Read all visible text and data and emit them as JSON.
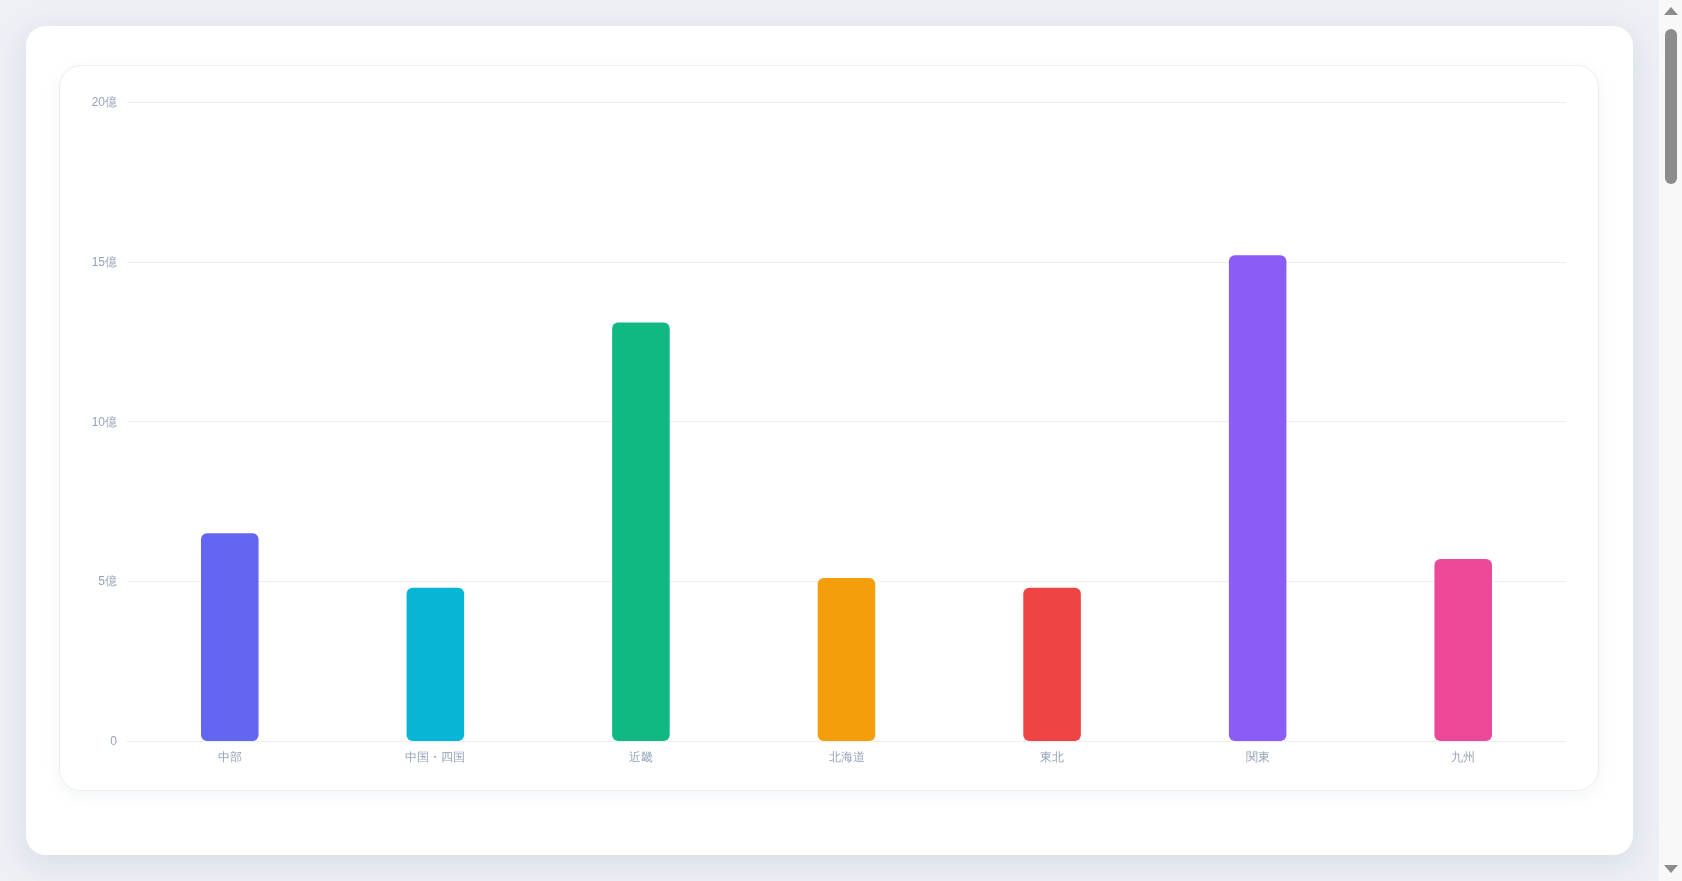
{
  "chart_data": {
    "type": "bar",
    "categories": [
      "中部",
      "中国・四国",
      "近畿",
      "北海道",
      "東北",
      "関東",
      "九州"
    ],
    "values": [
      6.5,
      4.8,
      13.1,
      5.1,
      4.8,
      15.2,
      5.7
    ],
    "colors": [
      "#6366f1",
      "#06b6d4",
      "#10b981",
      "#f59e0b",
      "#ef4444",
      "#8b5cf6",
      "#ec4899"
    ],
    "ylim": [
      0,
      20
    ],
    "yticks": [
      0,
      {
        "value": 5,
        "label": "5億"
      },
      {
        "value": 10,
        "label": "10億"
      },
      {
        "value": 15,
        "label": "15億"
      },
      {
        "value": 20,
        "label": "20億"
      }
    ],
    "grid": "y"
  }
}
